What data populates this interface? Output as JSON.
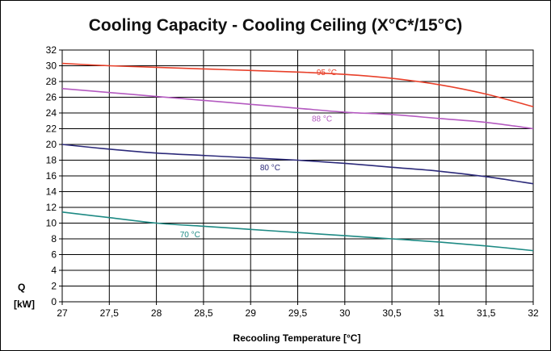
{
  "chart_data": {
    "type": "line",
    "title": "Cooling Capacity - Cooling Ceiling (X°C*/15°C)",
    "xlabel": "Recooling Temperature [°C]",
    "ylabel_lines": [
      "Q",
      "[kW]"
    ],
    "xlim": [
      27,
      32
    ],
    "ylim": [
      0,
      32
    ],
    "x_ticks": [
      27,
      27.5,
      28,
      28.5,
      29,
      29.5,
      30,
      30.5,
      31,
      31.5,
      32
    ],
    "x_tick_labels": [
      "27",
      "27,5",
      "28",
      "28,5",
      "29",
      "29,5",
      "30",
      "30,5",
      "31",
      "31,5",
      "32"
    ],
    "y_ticks": [
      0,
      2,
      4,
      6,
      8,
      10,
      12,
      14,
      16,
      18,
      20,
      22,
      24,
      26,
      28,
      30,
      32
    ],
    "y_tick_labels": [
      "0",
      "2",
      "4",
      "6",
      "8",
      "10",
      "12",
      "14",
      "16",
      "18",
      "20",
      "22",
      "24",
      "26",
      "28",
      "30",
      "32"
    ],
    "grid": true,
    "series": [
      {
        "name": "95 °C",
        "color": "#e8402a",
        "x": [
          27,
          27.5,
          28,
          28.5,
          29,
          29.5,
          30,
          30.5,
          31,
          31.5,
          32
        ],
        "y": [
          30.3,
          30.0,
          29.8,
          29.6,
          29.4,
          29.2,
          28.9,
          28.4,
          27.6,
          26.4,
          24.8
        ],
        "label_at": [
          29.7,
          28.8
        ]
      },
      {
        "name": "88 °C",
        "color": "#b45ac0",
        "x": [
          27,
          27.5,
          28,
          28.5,
          29,
          29.5,
          30,
          30.5,
          31,
          31.5,
          32
        ],
        "y": [
          27.1,
          26.6,
          26.1,
          25.6,
          25.1,
          24.6,
          24.1,
          23.8,
          23.3,
          22.8,
          22.0
        ],
        "label_at": [
          29.65,
          22.9
        ]
      },
      {
        "name": "80 °C",
        "color": "#2c2a7a",
        "x": [
          27,
          27.5,
          28,
          28.5,
          29,
          29.5,
          30,
          30.5,
          31,
          31.5,
          32
        ],
        "y": [
          20.0,
          19.4,
          18.9,
          18.6,
          18.3,
          18.0,
          17.6,
          17.1,
          16.6,
          15.9,
          15.0
        ],
        "label_at": [
          29.1,
          16.7
        ]
      },
      {
        "name": "70 °C",
        "color": "#1e8a84",
        "x": [
          27,
          27.5,
          28,
          28.5,
          29,
          29.5,
          30,
          30.5,
          31,
          31.5,
          32
        ],
        "y": [
          11.4,
          10.7,
          10.0,
          9.6,
          9.2,
          8.8,
          8.4,
          8.0,
          7.6,
          7.1,
          6.5
        ],
        "label_at": [
          28.25,
          8.2
        ]
      }
    ]
  }
}
